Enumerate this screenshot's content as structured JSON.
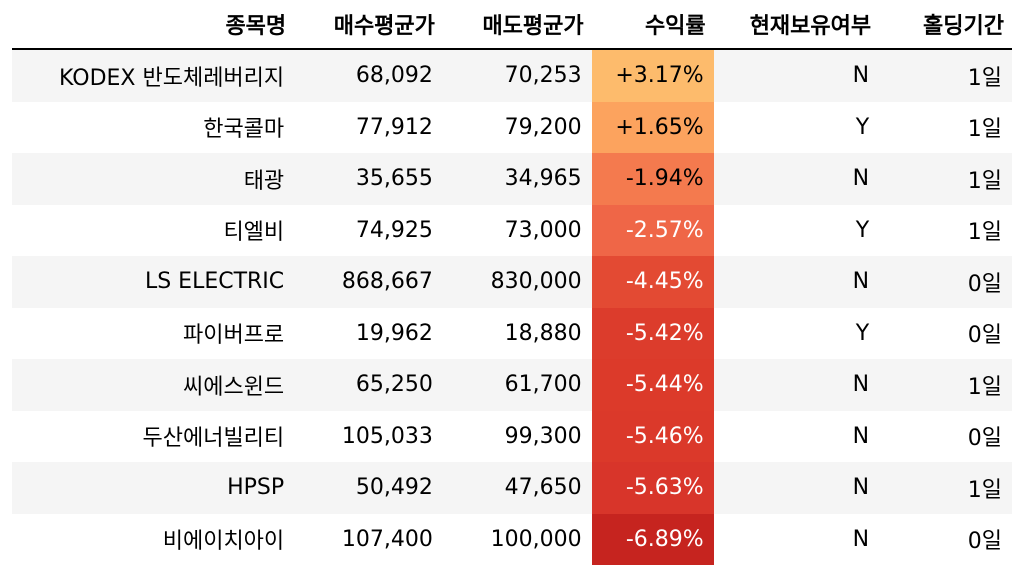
{
  "table": {
    "columns": [
      "종목명",
      "매수평균가",
      "매도평균가",
      "수익률",
      "현재보유여부",
      "홀딩기간"
    ],
    "rows": [
      [
        "KODEX 반도체레버리지",
        "68,092",
        "70,253",
        "+3.17%",
        "N",
        "1일"
      ],
      [
        "한국콜마",
        "77,912",
        "79,200",
        "+1.65%",
        "Y",
        "1일"
      ],
      [
        "태광",
        "35,655",
        "34,965",
        "-1.94%",
        "N",
        "1일"
      ],
      [
        "티엘비",
        "74,925",
        "73,000",
        "-2.57%",
        "Y",
        "1일"
      ],
      [
        "LS ELECTRIC",
        "868,667",
        "830,000",
        "-4.45%",
        "N",
        "0일"
      ],
      [
        "파이버프로",
        "19,962",
        "18,880",
        "-5.42%",
        "Y",
        "0일"
      ],
      [
        "씨에스윈드",
        "65,250",
        "61,700",
        "-5.44%",
        "N",
        "1일"
      ],
      [
        "두산에너빌리티",
        "105,033",
        "99,300",
        "-5.46%",
        "N",
        "0일"
      ],
      [
        "HPSP",
        "50,492",
        "47,650",
        "-5.63%",
        "N",
        "1일"
      ],
      [
        "비에이치아이",
        "107,400",
        "100,000",
        "-6.89%",
        "N",
        "0일"
      ]
    ],
    "return_colors": [
      "#fdbb6c",
      "#fca35e",
      "#f47a4e",
      "#ef6647",
      "#e34a33",
      "#dc3c2c",
      "#dc3a2a",
      "#db392a",
      "#d8352a",
      "#c6241f"
    ]
  }
}
